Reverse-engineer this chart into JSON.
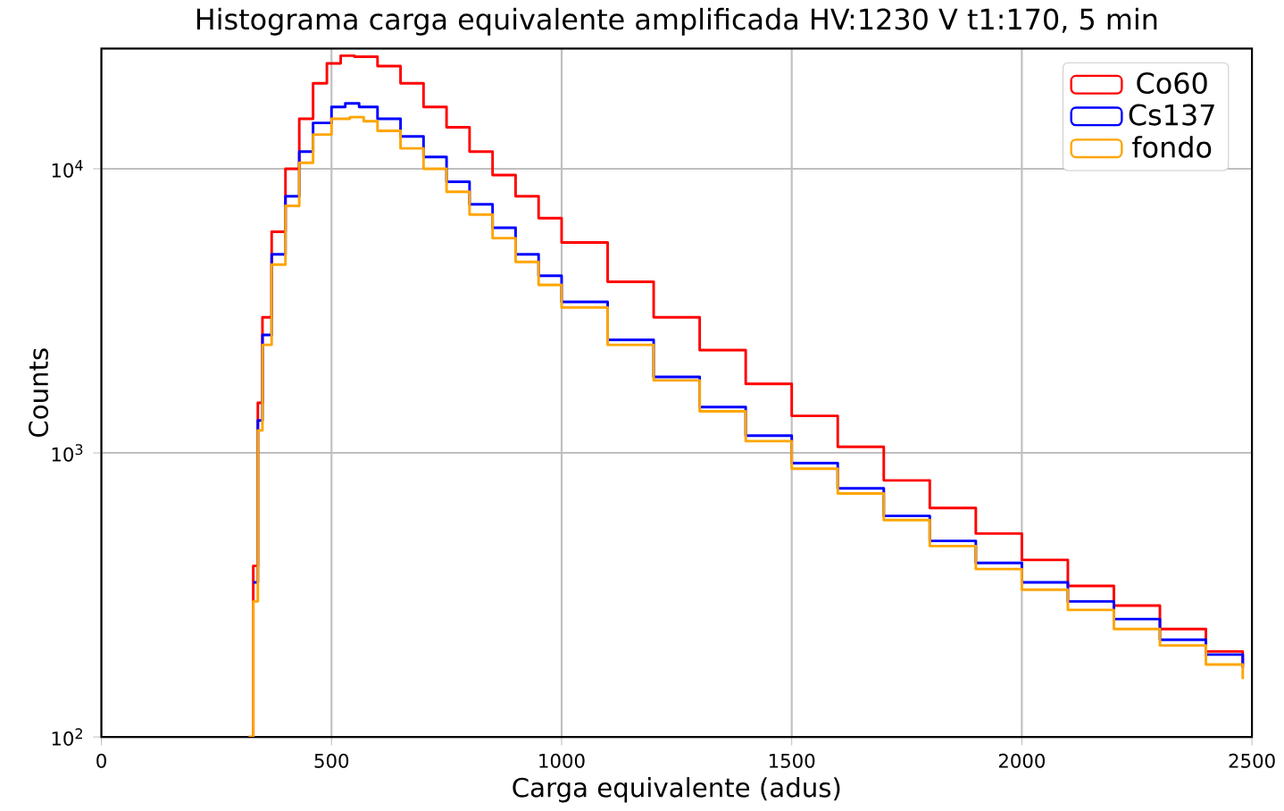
{
  "chart_data": {
    "type": "step",
    "title": "Histograma carga equivalente amplificada HV:1230 V t1:170, 5 min",
    "xlabel": "Carga equivalente (adus)",
    "ylabel": "Counts",
    "log": "y",
    "grid": true,
    "legend": "top right",
    "xlim": [
      0,
      2500
    ],
    "ylim": [
      100,
      26500
    ],
    "xticks": [
      0,
      500,
      1000,
      1500,
      2000,
      2500
    ],
    "yticks": [
      {
        "value": 100,
        "label": "10$^{2}$"
      },
      {
        "value": 1000,
        "label": "10$^{3}$"
      },
      {
        "value": 10000,
        "label": "10$^{4}$"
      }
    ],
    "series": [
      {
        "name": "Co60",
        "color": "#ff0000",
        "x": [
          320,
          330,
          340,
          350,
          370,
          400,
          430,
          460,
          490,
          520,
          550,
          600,
          650,
          700,
          750,
          800,
          850,
          900,
          950,
          1000,
          1100,
          1200,
          1300,
          1400,
          1500,
          1600,
          1700,
          1800,
          1900,
          2000,
          2100,
          2200,
          2300,
          2400,
          2480
        ],
        "values": [
          100,
          400,
          1500,
          3000,
          6000,
          10000,
          15000,
          20000,
          23500,
          25000,
          24800,
          23000,
          20000,
          16500,
          14000,
          11500,
          9500,
          8000,
          6700,
          5500,
          4000,
          3000,
          2300,
          1750,
          1350,
          1050,
          800,
          640,
          520,
          420,
          340,
          290,
          240,
          200,
          180
        ]
      },
      {
        "name": "Cs137",
        "color": "#0000ff",
        "x": [
          330,
          340,
          350,
          370,
          400,
          430,
          460,
          500,
          530,
          560,
          600,
          650,
          700,
          750,
          800,
          850,
          900,
          950,
          1000,
          1100,
          1200,
          1300,
          1400,
          1500,
          1600,
          1700,
          1800,
          1900,
          2000,
          2100,
          2200,
          2300,
          2400,
          2480
        ],
        "values": [
          350,
          1300,
          2600,
          5000,
          8000,
          11500,
          14500,
          16500,
          17000,
          16500,
          15000,
          13000,
          11000,
          9000,
          7500,
          6200,
          5000,
          4200,
          3400,
          2500,
          1850,
          1450,
          1150,
          920,
          750,
          600,
          490,
          410,
          350,
          300,
          260,
          220,
          195,
          175
        ]
      },
      {
        "name": "fondo",
        "color": "#ffa500",
        "x": [
          320,
          330,
          340,
          350,
          370,
          400,
          430,
          460,
          500,
          540,
          570,
          600,
          650,
          700,
          750,
          800,
          850,
          900,
          950,
          1000,
          1100,
          1200,
          1300,
          1400,
          1500,
          1600,
          1700,
          1800,
          1900,
          2000,
          2100,
          2200,
          2300,
          2400,
          2480
        ],
        "values": [
          100,
          300,
          1200,
          2400,
          4600,
          7400,
          10500,
          13200,
          15000,
          15200,
          14700,
          13600,
          11800,
          10000,
          8300,
          6900,
          5700,
          4700,
          3900,
          3250,
          2400,
          1800,
          1400,
          1100,
          880,
          720,
          580,
          470,
          390,
          330,
          280,
          240,
          210,
          180,
          160
        ]
      }
    ]
  }
}
